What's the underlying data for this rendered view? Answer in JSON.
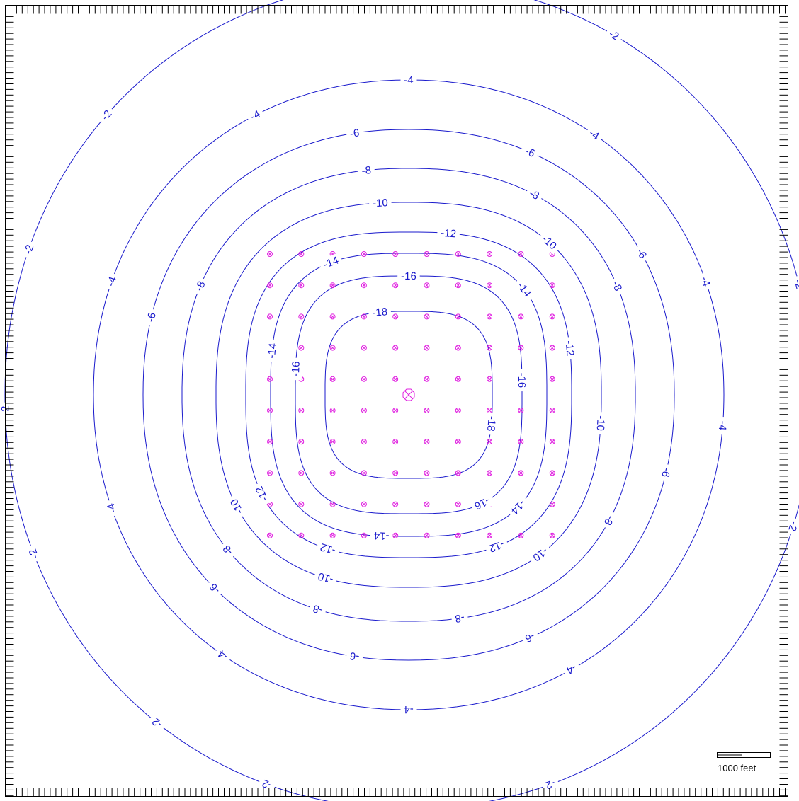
{
  "map": {
    "contour_color": "#1a1acc",
    "well_color": "#e020e0",
    "contours": [
      {
        "level": -2,
        "labels": [
          "-2",
          "-2",
          "-2",
          "-2",
          "-2",
          "-2",
          "-2",
          "-2",
          "-2",
          "-2"
        ]
      },
      {
        "level": -4,
        "labels": [
          "-4",
          "-4",
          "-4",
          "-4",
          "-4",
          "-4",
          "-4",
          "-4",
          "-4",
          "-4"
        ]
      },
      {
        "level": -6,
        "labels": [
          "-6",
          "-6",
          "-6",
          "-6",
          "-6",
          "-6",
          "-6",
          "-6"
        ]
      },
      {
        "level": -8,
        "labels": [
          "-8",
          "-8",
          "-8",
          "-8",
          "-8",
          "-8",
          "-8",
          "-8"
        ]
      },
      {
        "level": -10,
        "labels": [
          "-10",
          "-10",
          "-10",
          "-10",
          "-10",
          "-10"
        ]
      },
      {
        "level": -12,
        "labels": [
          "-12",
          "-12",
          "-12",
          "-12",
          "-12"
        ]
      },
      {
        "level": -14,
        "labels": [
          "-14",
          "-14",
          "-14",
          "-14",
          "-14"
        ]
      },
      {
        "level": -16,
        "labels": [
          "-16",
          "-16",
          "-16",
          "-16"
        ]
      },
      {
        "level": -18,
        "labels": [
          "-18",
          "-18"
        ]
      }
    ],
    "well_grid": {
      "columns": 10,
      "rows": 10
    },
    "pumping_well": "pumping-well-icon",
    "scale_bar": {
      "label": "1000 feet"
    }
  }
}
